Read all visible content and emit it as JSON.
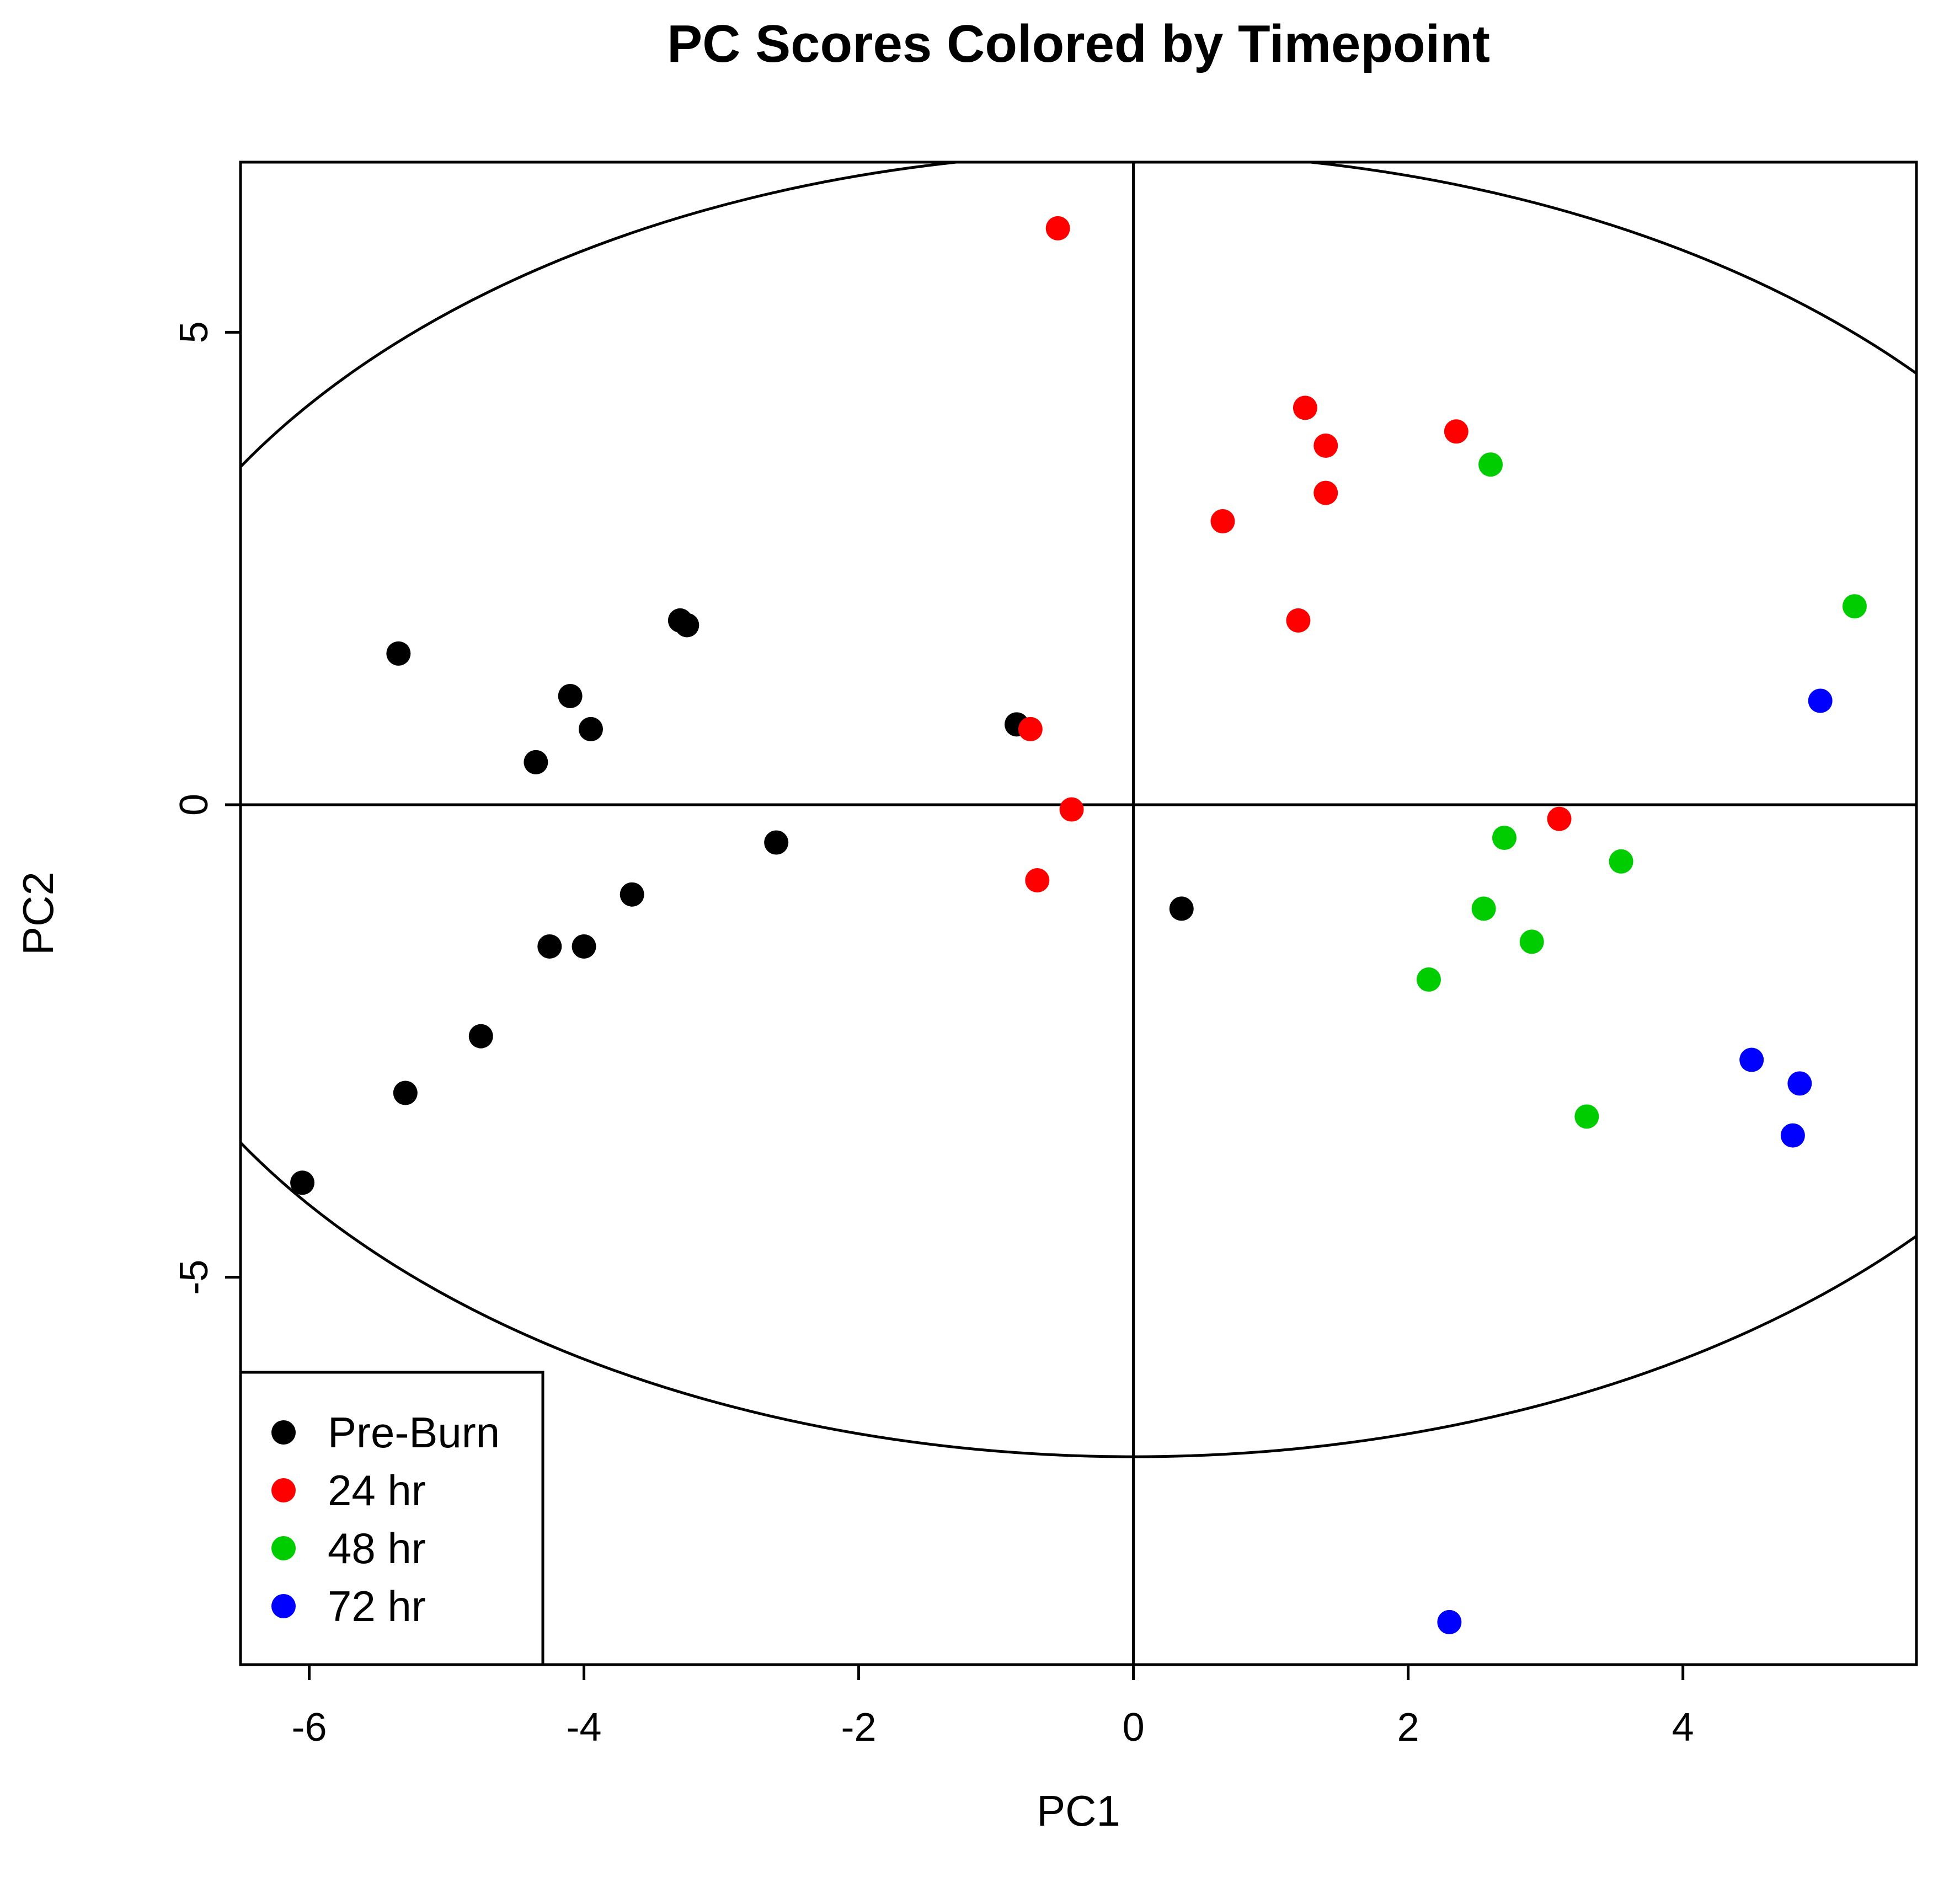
{
  "chart_data": {
    "type": "scatter",
    "title": "PC Scores Colored by Timepoint",
    "xlabel": "PC1",
    "ylabel": "PC2",
    "xlim": [
      -6.5,
      5.7
    ],
    "ylim": [
      -9.1,
      6.8
    ],
    "x_ticks": [
      -6,
      -4,
      -2,
      0,
      2,
      4
    ],
    "x_tick_labels": [
      "-6",
      "-4",
      "-2",
      "0",
      "2",
      "4"
    ],
    "y_ticks": [
      -5,
      0,
      5
    ],
    "y_tick_labels": [
      "-5",
      "0",
      "5"
    ],
    "grid": false,
    "reference_lines": {
      "x": 0,
      "y": 0
    },
    "confidence_ellipse": {
      "center": [
        0,
        0
      ],
      "semi_axis_x": 7.6,
      "semi_axis_y": 6.9
    },
    "legend": {
      "position": "bottom-left",
      "entries": [
        {
          "label": "Pre-Burn",
          "color": "#000000"
        },
        {
          "label": "24 hr",
          "color": "#ff0000"
        },
        {
          "label": "48 hr",
          "color": "#00cd00"
        },
        {
          "label": "72 hr",
          "color": "#0000ff"
        }
      ]
    },
    "series": [
      {
        "name": "Pre-Burn",
        "color": "#000000",
        "points": [
          [
            -5.35,
            1.6
          ],
          [
            -4.1,
            1.15
          ],
          [
            -3.95,
            0.8
          ],
          [
            -4.35,
            0.45
          ],
          [
            -3.3,
            1.95
          ],
          [
            -3.25,
            1.9
          ],
          [
            -0.85,
            0.85
          ],
          [
            -2.6,
            -0.4
          ],
          [
            -3.65,
            -0.95
          ],
          [
            -4.25,
            -1.5
          ],
          [
            -4.0,
            -1.5
          ],
          [
            -4.75,
            -2.45
          ],
          [
            -5.3,
            -3.05
          ],
          [
            -6.05,
            -4.0
          ],
          [
            0.35,
            -1.1
          ]
        ]
      },
      {
        "name": "24 hr",
        "color": "#ff0000",
        "points": [
          [
            -0.55,
            6.1
          ],
          [
            1.25,
            4.2
          ],
          [
            1.4,
            3.8
          ],
          [
            2.35,
            3.95
          ],
          [
            1.4,
            3.3
          ],
          [
            0.65,
            3.0
          ],
          [
            1.2,
            1.95
          ],
          [
            -0.75,
            0.8
          ],
          [
            -0.45,
            -0.05
          ],
          [
            -0.7,
            -0.8
          ],
          [
            3.1,
            -0.15
          ]
        ]
      },
      {
        "name": "48 hr",
        "color": "#00cd00",
        "points": [
          [
            2.6,
            3.6
          ],
          [
            5.25,
            2.1
          ],
          [
            2.7,
            -0.35
          ],
          [
            3.55,
            -0.6
          ],
          [
            2.55,
            -1.1
          ],
          [
            2.9,
            -1.45
          ],
          [
            2.15,
            -1.85
          ],
          [
            3.3,
            -3.3
          ]
        ]
      },
      {
        "name": "72 hr",
        "color": "#0000ff",
        "points": [
          [
            5.0,
            1.1
          ],
          [
            4.5,
            -2.7
          ],
          [
            4.85,
            -2.95
          ],
          [
            4.8,
            -3.5
          ],
          [
            2.3,
            -8.65
          ]
        ]
      }
    ]
  }
}
